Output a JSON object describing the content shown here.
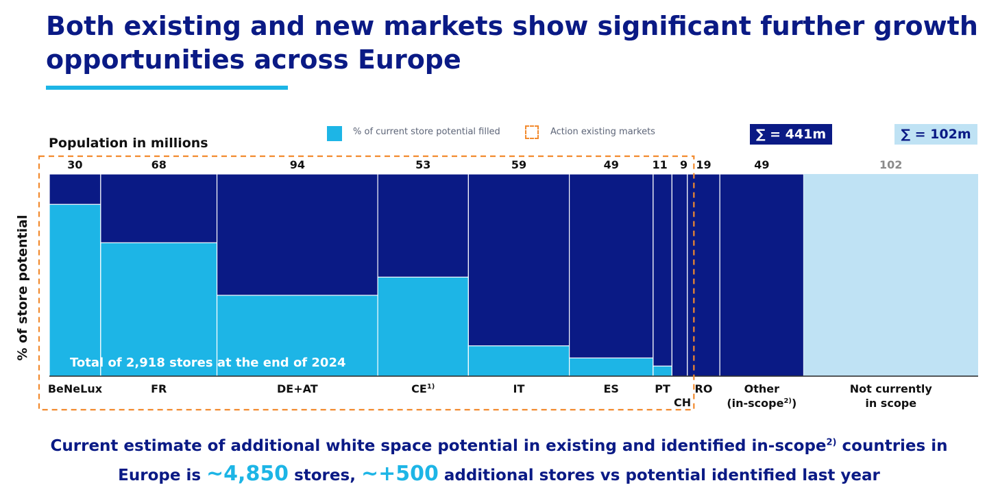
{
  "header": {
    "title": "Both existing and new markets show significant further growth opportunities across Europe"
  },
  "legend": {
    "filled_label": "% of current store potential filled",
    "action_label": "Action existing markets",
    "sum_in_scope": "∑ = 441m",
    "sum_out_scope": "∑ = 102m"
  },
  "colors": {
    "navy": "#0a1a85",
    "cyan": "#1db5e6",
    "light_blue": "#bfe2f4",
    "orange": "#f28a2e"
  },
  "chart_data": {
    "type": "marimekko",
    "title": "",
    "xlabel": "Population in millions",
    "ylabel": "% of store potential",
    "ylim": [
      0,
      100
    ],
    "annotation": "Total of 2,918 stores at the end of 2024",
    "categories": [
      {
        "label": "BeNeLux",
        "population": 30,
        "filled_pct": 85,
        "scope": "existing"
      },
      {
        "label": "FR",
        "population": 68,
        "filled_pct": 66,
        "scope": "existing"
      },
      {
        "label": "DE+AT",
        "population": 94,
        "filled_pct": 40,
        "scope": "existing"
      },
      {
        "label": "CE",
        "sup": "1)",
        "population": 53,
        "filled_pct": 49,
        "scope": "existing"
      },
      {
        "label": "IT",
        "population": 59,
        "filled_pct": 15,
        "scope": "existing"
      },
      {
        "label": "ES",
        "population": 49,
        "filled_pct": 9,
        "scope": "existing"
      },
      {
        "label": "PT",
        "population": 11,
        "filled_pct": 5,
        "scope": "existing"
      },
      {
        "label": "CH",
        "population": 9,
        "filled_pct": 0,
        "scope": "new"
      },
      {
        "label": "RO",
        "population": 19,
        "filled_pct": 0,
        "scope": "new"
      },
      {
        "label": "Other",
        "label2": "(in-scope",
        "label2_sup": "2)",
        "label2_end": ")",
        "population": 49,
        "filled_pct": 0,
        "scope": "new"
      },
      {
        "label": "Not currently",
        "label2": "in scope",
        "population": 102,
        "filled_pct": 0,
        "scope": "out"
      }
    ]
  },
  "footer": {
    "line1_a": "Current estimate of additional white space potential in existing and identified in-scope",
    "line1_sup": "2)",
    "line1_b": " countries in",
    "line2_a": "Europe is ",
    "line2_num1": "~4,850",
    "line2_b": " stores, ",
    "line2_num2": "~+500",
    "line2_c": " additional stores vs potential identified last year"
  }
}
